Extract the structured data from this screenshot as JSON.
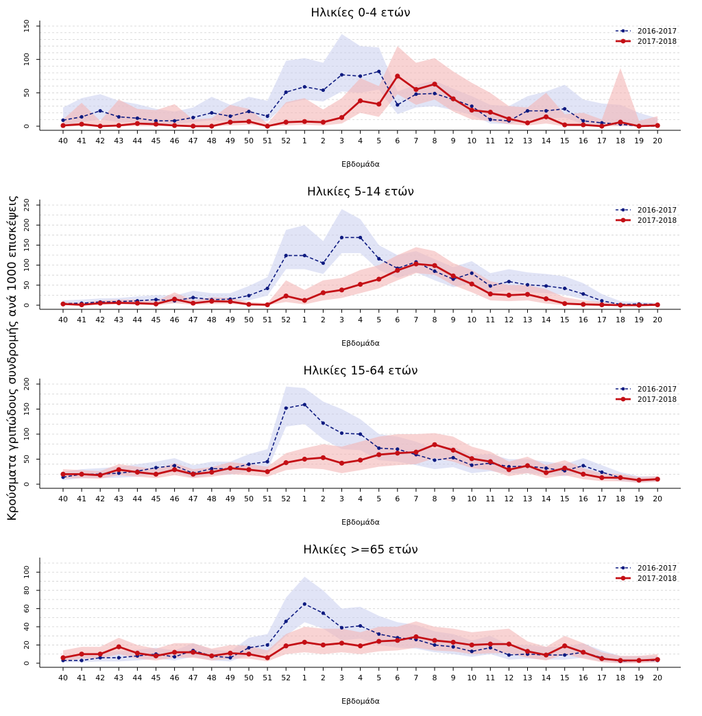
{
  "ylabel": "Κρούσματα γριπώδους συνδρομής ανά 1000 επισκέψεις",
  "colors": {
    "series_2016": "#0d1a80",
    "series_2017": "#c40f15",
    "band_2016": "#c9cdee",
    "band_2017": "#f3b6b6"
  },
  "chart_data": [
    {
      "type": "line",
      "title": "Ηλικίες 0-4 ετών",
      "xlabel": "Εβδομάδα",
      "categories": [
        "40",
        "41",
        "42",
        "43",
        "44",
        "45",
        "46",
        "47",
        "48",
        "49",
        "50",
        "51",
        "52",
        "1",
        "2",
        "3",
        "4",
        "5",
        "6",
        "7",
        "8",
        "9",
        "10",
        "11",
        "12",
        "13",
        "14",
        "15",
        "16",
        "17",
        "18",
        "19",
        "20"
      ],
      "ylim": [
        0,
        150
      ],
      "yticks": [
        0,
        50,
        100,
        150
      ],
      "grid_step": 10,
      "legend_position": "top-right",
      "series": [
        {
          "name": "2016-2017",
          "style": "dashed",
          "values": [
            9,
            14,
            23,
            14,
            12,
            8,
            8,
            13,
            20,
            15,
            22,
            15,
            51,
            59,
            54,
            77,
            75,
            82,
            32,
            48,
            49,
            40,
            30,
            10,
            8,
            23,
            23,
            26,
            8,
            5,
            3,
            0,
            0
          ],
          "upper": [
            28,
            42,
            48,
            38,
            33,
            26,
            22,
            28,
            44,
            32,
            44,
            38,
            98,
            102,
            95,
            138,
            120,
            118,
            52,
            62,
            68,
            56,
            45,
            32,
            30,
            45,
            52,
            62,
            40,
            34,
            32,
            20,
            12
          ],
          "lower": [
            2,
            6,
            10,
            6,
            6,
            3,
            3,
            6,
            9,
            7,
            10,
            7,
            34,
            40,
            37,
            52,
            50,
            55,
            18,
            28,
            30,
            24,
            17,
            4,
            3,
            11,
            11,
            13,
            3,
            2,
            1,
            0,
            0
          ]
        },
        {
          "name": "2017-2018",
          "style": "solid",
          "values": [
            1,
            3,
            0,
            1,
            4,
            3,
            1,
            0,
            0,
            6,
            7,
            0,
            6,
            7,
            6,
            13,
            38,
            33,
            75,
            55,
            63,
            41,
            24,
            21,
            11,
            5,
            14,
            2,
            2,
            0,
            6,
            0,
            1
          ],
          "upper": [
            10,
            35,
            8,
            40,
            26,
            24,
            33,
            10,
            12,
            32,
            26,
            4,
            36,
            42,
            25,
            42,
            72,
            60,
            120,
            95,
            102,
            82,
            65,
            50,
            30,
            28,
            50,
            18,
            20,
            10,
            87,
            8,
            15
          ],
          "lower": [
            0,
            0,
            0,
            0,
            0,
            0,
            0,
            0,
            0,
            1,
            2,
            0,
            1,
            2,
            1,
            4,
            20,
            14,
            48,
            32,
            40,
            22,
            10,
            8,
            3,
            1,
            4,
            0,
            0,
            0,
            0,
            0,
            0
          ]
        }
      ]
    },
    {
      "type": "line",
      "title": "Ηλικίες 5-14 ετών",
      "xlabel": "Εβδομάδα",
      "categories": [
        "40",
        "41",
        "42",
        "43",
        "44",
        "45",
        "46",
        "47",
        "48",
        "49",
        "50",
        "51",
        "52",
        "1",
        "2",
        "3",
        "4",
        "5",
        "6",
        "7",
        "8",
        "9",
        "10",
        "11",
        "12",
        "13",
        "14",
        "15",
        "16",
        "17",
        "18",
        "19",
        "20"
      ],
      "ylim": [
        0,
        250
      ],
      "yticks": [
        0,
        50,
        100,
        150,
        200,
        250
      ],
      "grid_step": 25,
      "legend_position": "top-right",
      "series": [
        {
          "name": "2016-2017",
          "style": "dashed",
          "values": [
            4,
            5,
            8,
            9,
            11,
            14,
            11,
            19,
            14,
            15,
            24,
            42,
            124,
            124,
            105,
            169,
            169,
            116,
            92,
            108,
            85,
            65,
            80,
            48,
            59,
            51,
            48,
            42,
            28,
            11,
            2,
            3,
            2
          ],
          "upper": [
            12,
            14,
            17,
            18,
            22,
            25,
            24,
            36,
            30,
            30,
            48,
            70,
            188,
            200,
            160,
            240,
            215,
            150,
            125,
            135,
            115,
            95,
            110,
            80,
            90,
            82,
            78,
            72,
            55,
            28,
            10,
            8,
            6
          ],
          "lower": [
            1,
            1,
            3,
            4,
            5,
            7,
            5,
            10,
            7,
            8,
            12,
            24,
            90,
            90,
            78,
            130,
            130,
            88,
            68,
            82,
            62,
            45,
            55,
            30,
            38,
            32,
            30,
            26,
            15,
            4,
            0,
            1,
            0
          ]
        },
        {
          "name": "2017-2018",
          "style": "solid",
          "values": [
            3,
            1,
            5,
            6,
            5,
            3,
            15,
            5,
            10,
            9,
            2,
            1,
            23,
            12,
            31,
            38,
            52,
            65,
            87,
            103,
            99,
            73,
            53,
            28,
            25,
            27,
            16,
            4,
            2,
            1,
            0,
            0,
            1
          ],
          "upper": [
            8,
            6,
            12,
            14,
            14,
            10,
            32,
            12,
            20,
            18,
            8,
            5,
            62,
            38,
            62,
            68,
            88,
            100,
            125,
            145,
            135,
            105,
            88,
            60,
            50,
            50,
            40,
            20,
            12,
            8,
            4,
            3,
            5
          ],
          "lower": [
            0,
            0,
            1,
            2,
            1,
            0,
            5,
            1,
            3,
            3,
            0,
            0,
            8,
            2,
            12,
            18,
            30,
            42,
            62,
            80,
            76,
            50,
            32,
            12,
            10,
            12,
            4,
            0,
            0,
            0,
            0,
            0,
            0
          ]
        }
      ]
    },
    {
      "type": "line",
      "title": "Ηλικίες 15-64 ετών",
      "xlabel": "Εβδομάδα",
      "categories": [
        "40",
        "41",
        "42",
        "43",
        "44",
        "45",
        "46",
        "47",
        "48",
        "49",
        "50",
        "51",
        "52",
        "1",
        "2",
        "3",
        "4",
        "5",
        "6",
        "7",
        "8",
        "9",
        "10",
        "11",
        "12",
        "13",
        "14",
        "15",
        "16",
        "17",
        "18",
        "19",
        "20"
      ],
      "ylim": [
        0,
        200
      ],
      "yticks": [
        0,
        50,
        100,
        150,
        200
      ],
      "grid_step": 20,
      "legend_position": "top-right",
      "series": [
        {
          "name": "2016-2017",
          "style": "dashed",
          "values": [
            14,
            20,
            20,
            22,
            26,
            33,
            37,
            22,
            31,
            31,
            40,
            45,
            152,
            159,
            122,
            102,
            100,
            72,
            70,
            59,
            48,
            53,
            38,
            42,
            35,
            36,
            32,
            27,
            37,
            24,
            13,
            8,
            10
          ],
          "upper": [
            25,
            30,
            32,
            35,
            40,
            45,
            52,
            38,
            45,
            45,
            60,
            70,
            195,
            192,
            165,
            150,
            130,
            100,
            95,
            85,
            70,
            75,
            58,
            60,
            50,
            50,
            45,
            40,
            52,
            38,
            24,
            16,
            16
          ],
          "lower": [
            8,
            12,
            12,
            13,
            15,
            20,
            24,
            13,
            19,
            19,
            25,
            28,
            115,
            120,
            90,
            70,
            68,
            48,
            45,
            38,
            30,
            34,
            22,
            26,
            22,
            22,
            20,
            16,
            24,
            14,
            6,
            3,
            5
          ]
        },
        {
          "name": "2017-2018",
          "style": "solid",
          "values": [
            20,
            20,
            18,
            29,
            24,
            20,
            29,
            20,
            24,
            32,
            29,
            25,
            43,
            50,
            53,
            42,
            48,
            59,
            62,
            64,
            79,
            68,
            51,
            45,
            29,
            37,
            23,
            32,
            20,
            13,
            13,
            8,
            10
          ],
          "upper": [
            30,
            28,
            26,
            40,
            35,
            30,
            42,
            30,
            34,
            44,
            40,
            35,
            62,
            72,
            80,
            75,
            85,
            95,
            100,
            100,
            102,
            95,
            75,
            65,
            45,
            55,
            38,
            48,
            32,
            22,
            20,
            14,
            16
          ],
          "lower": [
            12,
            12,
            11,
            18,
            15,
            12,
            18,
            12,
            15,
            20,
            18,
            15,
            28,
            32,
            30,
            22,
            28,
            35,
            38,
            40,
            52,
            45,
            32,
            28,
            16,
            22,
            12,
            18,
            10,
            6,
            6,
            3,
            5
          ]
        }
      ]
    },
    {
      "type": "line",
      "title": "Ηλικίες >=65 ετών",
      "xlabel": "Εβδομάδα",
      "categories": [
        "40",
        "41",
        "42",
        "43",
        "44",
        "45",
        "46",
        "47",
        "48",
        "49",
        "50",
        "51",
        "52",
        "1",
        "2",
        "3",
        "4",
        "5",
        "6",
        "7",
        "8",
        "9",
        "10",
        "11",
        "12",
        "13",
        "14",
        "15",
        "16",
        "17",
        "18",
        "19",
        "20"
      ],
      "ylim": [
        0,
        110
      ],
      "yticks": [
        0,
        20,
        40,
        60,
        80,
        100
      ],
      "grid_step": 10,
      "legend_position": "top-right",
      "series": [
        {
          "name": "2016-2017",
          "style": "dashed",
          "values": [
            3,
            3,
            6,
            6,
            8,
            10,
            7,
            14,
            8,
            6,
            17,
            20,
            46,
            65,
            55,
            39,
            41,
            32,
            28,
            26,
            20,
            18,
            13,
            17,
            9,
            10,
            9,
            9,
            12,
            6,
            2,
            3,
            3
          ],
          "upper": [
            8,
            8,
            12,
            13,
            15,
            17,
            14,
            22,
            15,
            13,
            28,
            32,
            72,
            95,
            80,
            60,
            62,
            52,
            45,
            42,
            35,
            32,
            25,
            30,
            20,
            20,
            18,
            18,
            22,
            14,
            8,
            8,
            8
          ],
          "lower": [
            1,
            1,
            2,
            2,
            3,
            5,
            3,
            7,
            3,
            2,
            9,
            11,
            30,
            45,
            38,
            25,
            27,
            20,
            17,
            16,
            12,
            10,
            7,
            10,
            4,
            5,
            4,
            4,
            6,
            2,
            0,
            1,
            1
          ]
        },
        {
          "name": "2017-2018",
          "style": "solid",
          "values": [
            6,
            10,
            10,
            18,
            11,
            8,
            12,
            12,
            8,
            11,
            10,
            6,
            19,
            23,
            20,
            22,
            19,
            24,
            25,
            29,
            25,
            23,
            20,
            21,
            21,
            13,
            9,
            19,
            12,
            5,
            3,
            3,
            4
          ],
          "upper": [
            14,
            18,
            18,
            28,
            20,
            16,
            22,
            22,
            16,
            20,
            19,
            14,
            32,
            40,
            38,
            38,
            34,
            40,
            40,
            46,
            40,
            38,
            34,
            36,
            38,
            24,
            18,
            30,
            22,
            12,
            8,
            8,
            10
          ],
          "lower": [
            2,
            5,
            5,
            10,
            5,
            3,
            6,
            6,
            3,
            5,
            5,
            2,
            10,
            12,
            10,
            12,
            10,
            13,
            14,
            17,
            14,
            13,
            10,
            11,
            11,
            6,
            3,
            10,
            5,
            1,
            0,
            0,
            1
          ]
        }
      ]
    }
  ]
}
